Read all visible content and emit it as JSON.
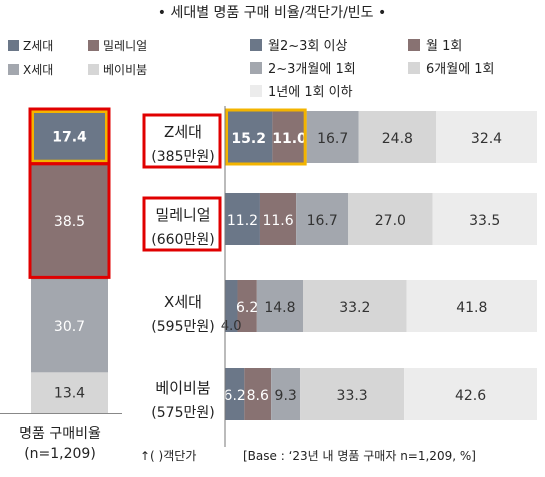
{
  "title": "• 세대별 명품 구매 비율/객단가/빈도 •",
  "colors": {
    "z": "#6b7788",
    "millennial": "#887272",
    "x": "#a3a7ae",
    "baby": "#d6d6d6",
    "highlight_red": "#e00000",
    "highlight_yellow": "#f3b400",
    "freq": [
      "#6b7788",
      "#887272",
      "#a3a7ae",
      "#d6d6d6",
      "#ececec"
    ]
  },
  "chart_data": [
    {
      "type": "bar",
      "stacked": true,
      "orientation": "vertical",
      "legend": [
        "Z세대",
        "밀레니얼",
        "X세대",
        "베이비붐"
      ],
      "series": [
        {
          "name": "Z세대",
          "values": [
            17.4
          ]
        },
        {
          "name": "밀레니얼",
          "values": [
            38.5
          ]
        },
        {
          "name": "X세대",
          "values": [
            30.7
          ]
        },
        {
          "name": "베이비붐",
          "values": [
            13.4
          ]
        }
      ],
      "xlabel": "명품 구매비율",
      "sample": "(n=1,209)",
      "highlighted": [
        "Z세대",
        "밀레니얼"
      ]
    },
    {
      "type": "bar",
      "stacked": true,
      "orientation": "horizontal",
      "categories": [
        {
          "name": "Z세대",
          "spend": "(385만원)",
          "highlighted": true
        },
        {
          "name": "밀레니얼",
          "spend": "(660만원)",
          "highlighted": true
        },
        {
          "name": "X세대",
          "spend": "(595만원)",
          "highlighted": false
        },
        {
          "name": "베이비붐",
          "spend": "(575만원)",
          "highlighted": false
        }
      ],
      "series": [
        {
          "name": "월2~3회 이상",
          "values": [
            15.2,
            11.2,
            4.0,
            6.2
          ]
        },
        {
          "name": "월 1회",
          "values": [
            11.0,
            11.6,
            6.2,
            8.6
          ]
        },
        {
          "name": "2~3개월에 1회",
          "values": [
            16.7,
            16.7,
            14.8,
            9.3
          ]
        },
        {
          "name": "6개월에 1회",
          "values": [
            24.8,
            27.0,
            33.2,
            33.3
          ]
        },
        {
          "name": "1년에 1회 이하",
          "values": [
            32.4,
            33.5,
            41.8,
            42.6
          ]
        }
      ],
      "highlight_box": {
        "category": "Z세대",
        "series": [
          "월2~3회 이상",
          "월 1회"
        ]
      }
    }
  ],
  "footnotes": {
    "spend_note": "↑(  )객단가",
    "base": "[Base : ‘23년 내 명품 구매자 n=1,209, %]"
  }
}
